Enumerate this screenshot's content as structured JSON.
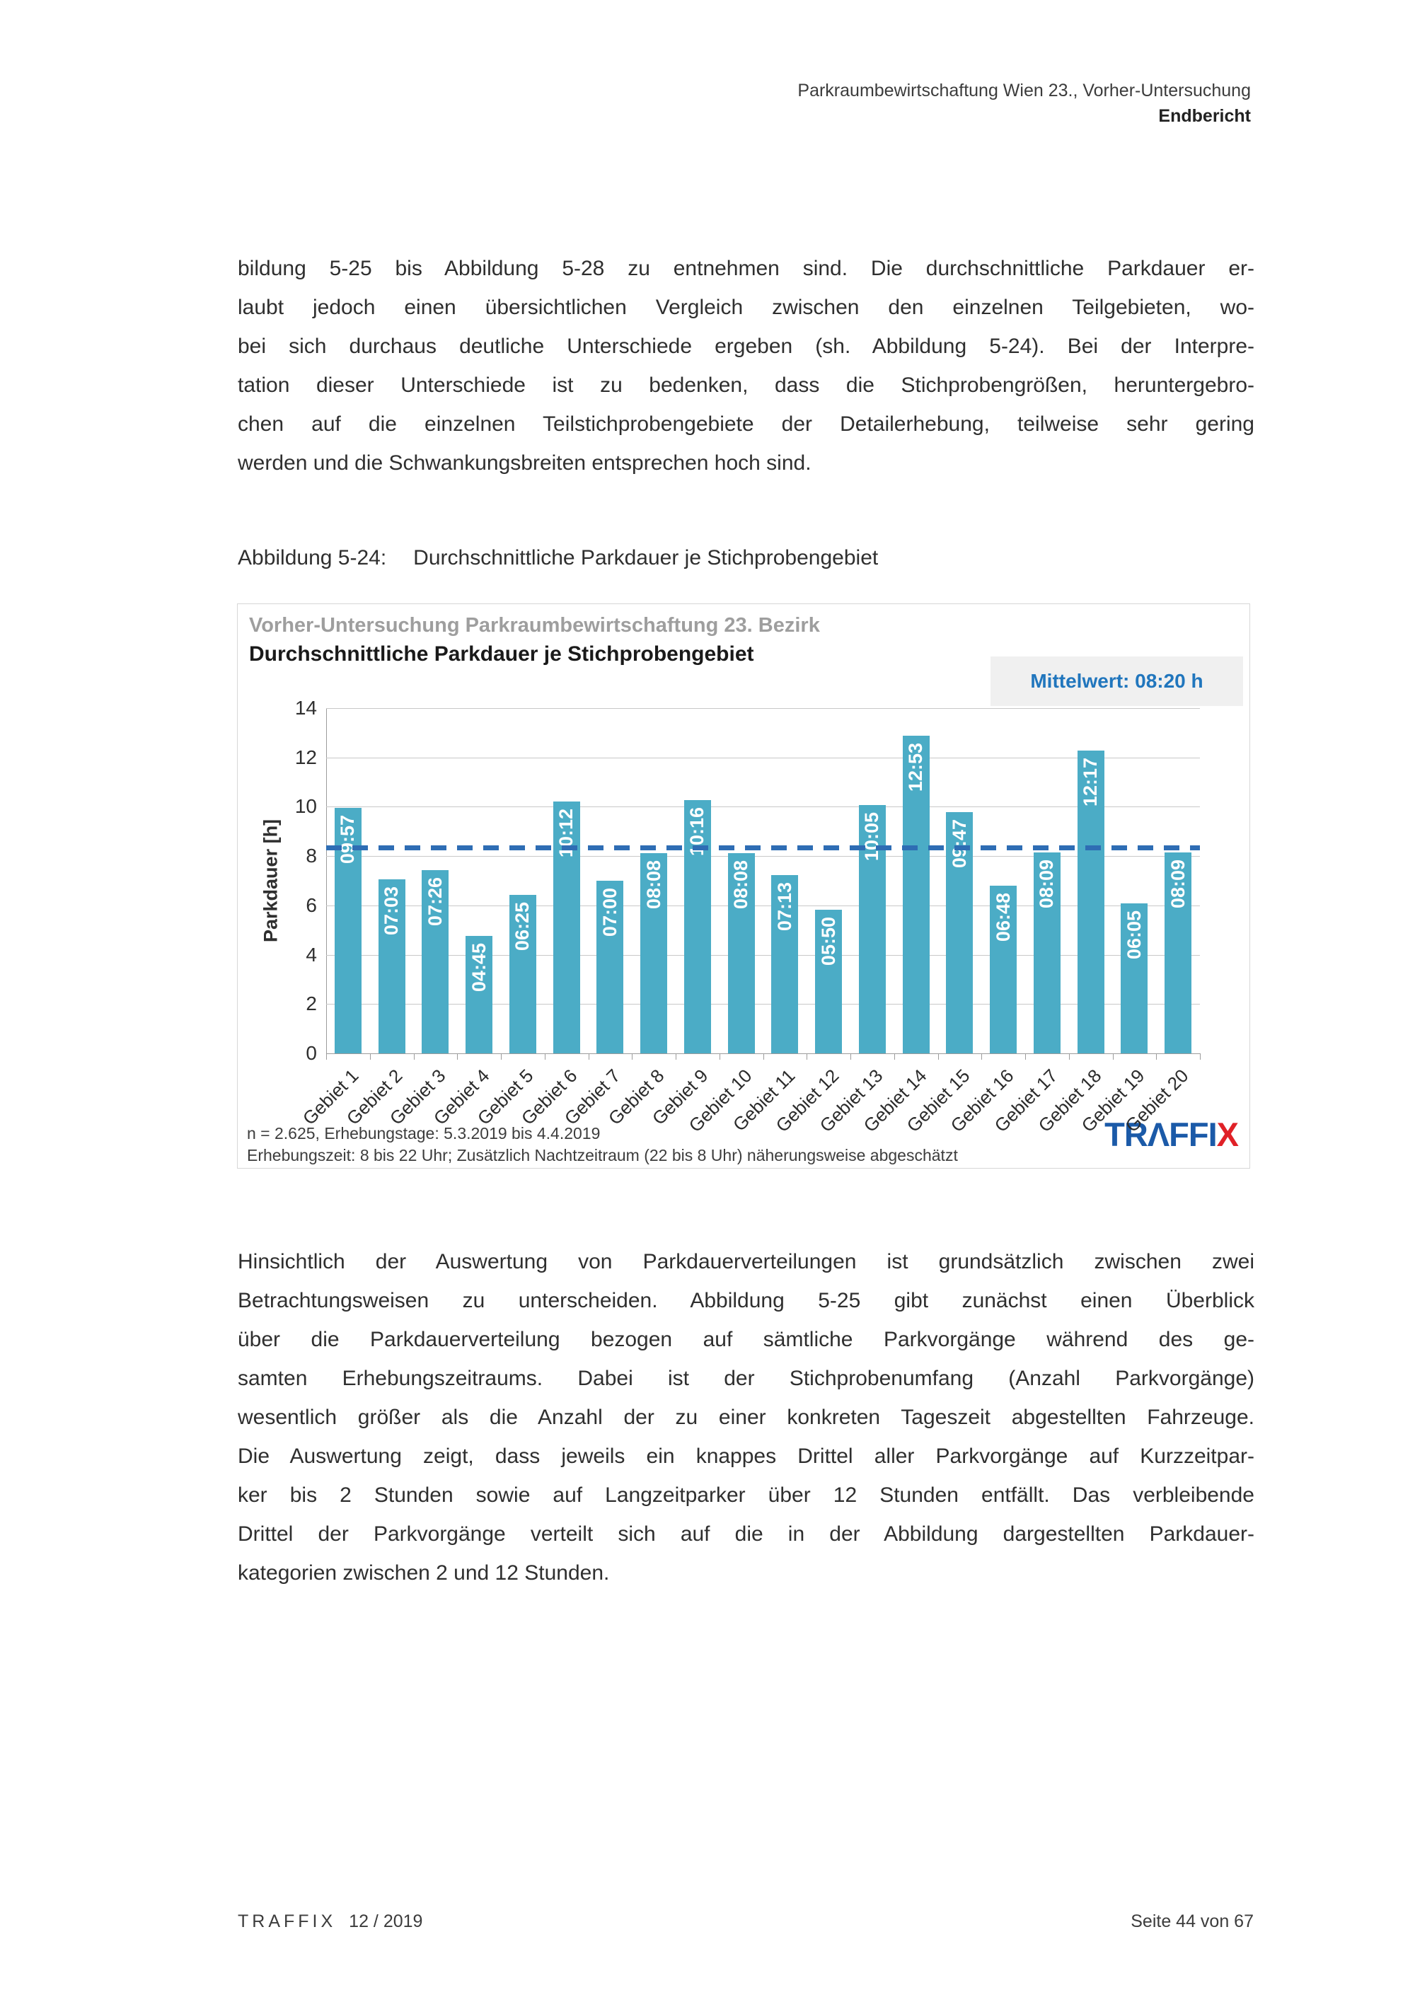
{
  "header": {
    "line1": "Parkraumbewirtschaftung Wien 23., Vorher-Untersuchung",
    "line2": "Endbericht"
  },
  "paragraph1": {
    "lines": [
      "bildung 5-25 bis Abbildung 5-28 zu entnehmen sind. Die durchschnittliche Parkdauer er-",
      "laubt jedoch einen übersichtlichen Vergleich zwischen den einzelnen Teilgebieten, wo-",
      "bei sich durchaus deutliche Unterschiede ergeben (sh. Abbildung 5-24). Bei der Interpre-",
      "tation dieser Unterschiede ist zu bedenken, dass die Stichprobengrößen, heruntergebro-",
      "chen auf die einzelnen Teilstichprobengebiete der Detailerhebung, teilweise sehr gering",
      "werden und die Schwankungsbreiten entsprechen hoch sind."
    ]
  },
  "caption": {
    "label": "Abbildung 5-24:",
    "text": "Durchschnittliche Parkdauer je Stichprobengebiet"
  },
  "figure": {
    "suptitle": "Vorher-Untersuchung Parkraumbewirtschaftung 23. Bezirk",
    "title": "Durchschnittliche Parkdauer je Stichprobengebiet",
    "mean_label": "Mittelwert: 08:20 h",
    "footnote_line1": "n = 2.625, Erhebungstage: 5.3.2019 bis 4.4.2019",
    "footnote_line2": "Erhebungszeit: 8 bis 22 Uhr; Zusätzlich Nachtzeitraum (22 bis 8 Uhr) näherungsweise abgeschätzt",
    "logo_blue": "TRΛFFI",
    "logo_red": "X"
  },
  "chart_data": {
    "type": "bar",
    "suptitle": "Vorher-Untersuchung Parkraumbewirtschaftung 23. Bezirk",
    "title": "Durchschnittliche Parkdauer je Stichprobengebiet",
    "ylabel": "Parkdauer [h]",
    "ylim": [
      0,
      14
    ],
    "yticks": [
      0,
      2,
      4,
      6,
      8,
      10,
      12,
      14
    ],
    "grid": true,
    "categories": [
      "Gebiet 1",
      "Gebiet 2",
      "Gebiet 3",
      "Gebiet 4",
      "Gebiet 5",
      "Gebiet 6",
      "Gebiet 7",
      "Gebiet 8",
      "Gebiet 9",
      "Gebiet 10",
      "Gebiet 11",
      "Gebiet 12",
      "Gebiet 13",
      "Gebiet 14",
      "Gebiet 15",
      "Gebiet 16",
      "Gebiet 17",
      "Gebiet 18",
      "Gebiet 19",
      "Gebiet 20"
    ],
    "values_hhmm": [
      "09:57",
      "07:03",
      "07:26",
      "04:45",
      "06:25",
      "10:12",
      "07:00",
      "08:08",
      "10:16",
      "08:08",
      "07:13",
      "05:50",
      "10:05",
      "12:53",
      "09:47",
      "06:48",
      "08:09",
      "12:17",
      "06:05",
      "08:09"
    ],
    "values_hours": [
      9.95,
      7.05,
      7.43,
      4.75,
      6.42,
      10.2,
      7.0,
      8.13,
      10.27,
      8.13,
      7.22,
      5.83,
      10.08,
      12.88,
      9.78,
      6.8,
      8.15,
      12.28,
      6.08,
      8.15
    ],
    "mean_label": "Mittelwert: 08:20 h",
    "mean_hhmm": "08:20",
    "mean_hours": 8.333,
    "bar_color": "#4BACC6",
    "mean_line_color": "#2E6DB4",
    "legend_position": "none"
  },
  "paragraph2": {
    "lines": [
      "Hinsichtlich der Auswertung von Parkdauerverteilungen ist grundsätzlich zwischen zwei",
      "Betrachtungsweisen zu unterscheiden. Abbildung 5-25 gibt zunächst einen Überblick",
      "über die Parkdauerverteilung bezogen auf sämtliche Parkvorgänge während des ge-",
      "samten Erhebungszeitraums. Dabei ist der Stichprobenumfang (Anzahl Parkvorgänge)",
      "wesentlich größer als die Anzahl der zu einer konkreten Tageszeit abgestellten Fahrzeuge.",
      "Die Auswertung zeigt, dass jeweils ein knappes Drittel aller Parkvorgänge auf Kurzzeitpar-",
      "ker bis 2 Stunden sowie auf Langzeitparker über 12 Stunden entfällt. Das verbleibende",
      "Drittel der Parkvorgänge verteilt sich auf die in der Abbildung dargestellten Parkdauer-",
      "kategorien zwischen 2 und 12 Stunden."
    ]
  },
  "page_footer": {
    "brand": "TRAFFIX",
    "date": "12 / 2019",
    "page_label": "Seite 44 von 67"
  }
}
